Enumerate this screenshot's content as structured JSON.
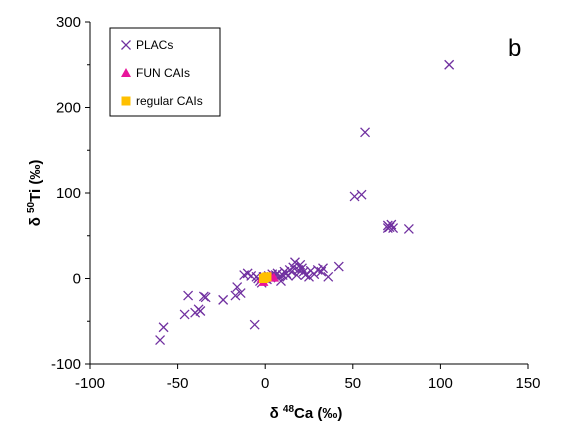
{
  "chart_data": {
    "type": "scatter",
    "panel_label": "b",
    "xlabel": {
      "prefix": "δ ",
      "sup": "48",
      "suffix": "Ca (‰)"
    },
    "ylabel": {
      "prefix": "δ ",
      "sup": "50",
      "suffix": "Ti (‰)"
    },
    "xlim": [
      -100,
      150
    ],
    "ylim": [
      -100,
      300
    ],
    "xticks": [
      -100,
      -50,
      0,
      50,
      100,
      150
    ],
    "yticks": [
      -100,
      0,
      100,
      200,
      300
    ],
    "grid": false,
    "legend": "top-left",
    "series": [
      {
        "name": "PLACs",
        "marker": "x",
        "color": "#7030A0",
        "points": [
          [
            105,
            250
          ],
          [
            57,
            171
          ],
          [
            51,
            96
          ],
          [
            55,
            98
          ],
          [
            70,
            62
          ],
          [
            71,
            60
          ],
          [
            72,
            63
          ],
          [
            73,
            59
          ],
          [
            70,
            59
          ],
          [
            82,
            58
          ],
          [
            -60,
            -72
          ],
          [
            -58,
            -57
          ],
          [
            -46,
            -42
          ],
          [
            -44,
            -20
          ],
          [
            -40,
            -40
          ],
          [
            -38,
            -36
          ],
          [
            -37,
            -38
          ],
          [
            -35,
            -21
          ],
          [
            -34,
            -22
          ],
          [
            -24,
            -25
          ],
          [
            -17,
            -20
          ],
          [
            -16,
            -10
          ],
          [
            -14,
            -17
          ],
          [
            -6,
            -54
          ],
          [
            -5,
            2
          ],
          [
            -4,
            0
          ],
          [
            -3,
            -3
          ],
          [
            -2,
            -5
          ],
          [
            -1,
            2
          ],
          [
            0,
            0
          ],
          [
            1,
            -1
          ],
          [
            2,
            3
          ],
          [
            3,
            1
          ],
          [
            4,
            5
          ],
          [
            5,
            2
          ],
          [
            6,
            4
          ],
          [
            7,
            6
          ],
          [
            8,
            2
          ],
          [
            9,
            -3
          ],
          [
            10,
            4
          ],
          [
            12,
            6
          ],
          [
            13,
            3
          ],
          [
            15,
            8
          ],
          [
            16,
            13
          ],
          [
            17,
            19
          ],
          [
            18,
            4
          ],
          [
            19,
            10
          ],
          [
            20,
            16
          ],
          [
            21,
            12
          ],
          [
            22,
            8
          ],
          [
            23,
            4
          ],
          [
            25,
            2
          ],
          [
            26,
            9
          ],
          [
            32,
            8
          ],
          [
            33,
            12
          ],
          [
            36,
            2
          ],
          [
            42,
            14
          ],
          [
            -8,
            3
          ],
          [
            -10,
            6
          ],
          [
            -12,
            4
          ],
          [
            11,
            8
          ],
          [
            14,
            10
          ],
          [
            28,
            5
          ],
          [
            30,
            10
          ]
        ]
      },
      {
        "name": "FUN CAIs",
        "marker": "triangle",
        "color": "#E8159B",
        "points": [
          [
            -1,
            -4
          ],
          [
            3,
            3
          ],
          [
            5,
            1
          ],
          [
            -2,
            0
          ]
        ]
      },
      {
        "name": "regular CAIs",
        "marker": "square",
        "color": "#FFC000",
        "points": [
          [
            0,
            1
          ],
          [
            1,
            2
          ],
          [
            -1,
            0
          ]
        ]
      }
    ]
  }
}
